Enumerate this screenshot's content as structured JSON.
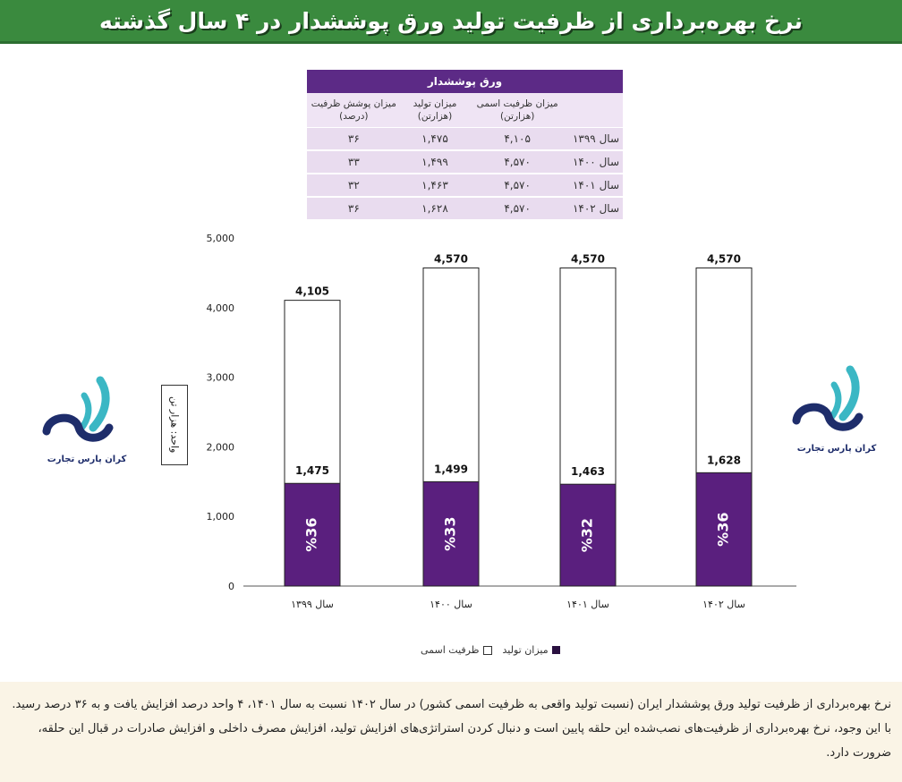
{
  "header": {
    "title": "نرخ بهره‌برداری از ظرفیت تولید ورق پوششدار در ۴ سال گذشته"
  },
  "table": {
    "title": "ورق پوششدار",
    "columns": [
      "",
      "میزان ظرفیت اسمی (هزارتن)",
      "میزان تولید (هزارتن)",
      "میزان پوشش ظرفیت (درصد)"
    ],
    "rows": [
      [
        "سال ۱۳۹۹",
        "۴,۱۰۵",
        "۱,۴۷۵",
        "۳۶"
      ],
      [
        "سال ۱۴۰۰",
        "۴,۵۷۰",
        "۱,۴۹۹",
        "۳۳"
      ],
      [
        "سال ۱۴۰۱",
        "۴,۵۷۰",
        "۱,۴۶۳",
        "۳۲"
      ],
      [
        "سال ۱۴۰۲",
        "۴,۵۷۰",
        "۱,۶۲۸",
        "۳۶"
      ]
    ]
  },
  "logo": {
    "text": "کران پارس تجارت"
  },
  "colors": {
    "accent": "#5c2a86",
    "header": "#3a8a3e",
    "production": "#5a1f7e",
    "capacity": "#ffffff"
  },
  "chart_data": {
    "type": "bar",
    "stacked_overlap": true,
    "categories": [
      "سال ۱۳۹۹",
      "سال ۱۴۰۰",
      "سال ۱۴۰۱",
      "سال ۱۴۰۲"
    ],
    "series": [
      {
        "name": "ظرفیت اسمی",
        "values": [
          4105,
          4570,
          4570,
          4570
        ],
        "labels": [
          "4,105",
          "4,570",
          "4,570",
          "4,570"
        ]
      },
      {
        "name": "میزان تولید",
        "values": [
          1475,
          1499,
          1463,
          1628
        ],
        "labels": [
          "1,475",
          "1,499",
          "1,463",
          "1,628"
        ]
      }
    ],
    "percent_labels": [
      "%36",
      "%33",
      "%32",
      "%36"
    ],
    "ylabel": "واحد: هزار تن",
    "ylim": [
      0,
      5000
    ],
    "yticks": [
      0,
      1000,
      2000,
      3000,
      4000,
      5000
    ],
    "ytick_labels": [
      "0",
      "1,000",
      "2,000",
      "3,000",
      "4,000",
      "5,000"
    ],
    "legend": {
      "position": "bottom",
      "entries": [
        "ظرفیت اسمی",
        "میزان تولید"
      ]
    },
    "grid": false
  },
  "footer": {
    "text": "نرخ بهره‌برداری از ظرفیت تولید ورق پوششدار ایران (نسبت تولید واقعی به ظرفیت اسمی کشور) در سال ۱۴۰۲ نسبت به سال ۱۴۰۱، ۴ واحد درصد افزایش یافت و به ۳۶ درصد رسید. با این وجود، نرخ بهره‌برداری از ظرفیت‌های نصب‌شده این حلقه پایین است و دنبال کردن استراتژی‌های افزایش تولید، افزایش مصرف داخلی و افزایش صادرات در قبال این حلقه، ضرورت دارد."
  }
}
